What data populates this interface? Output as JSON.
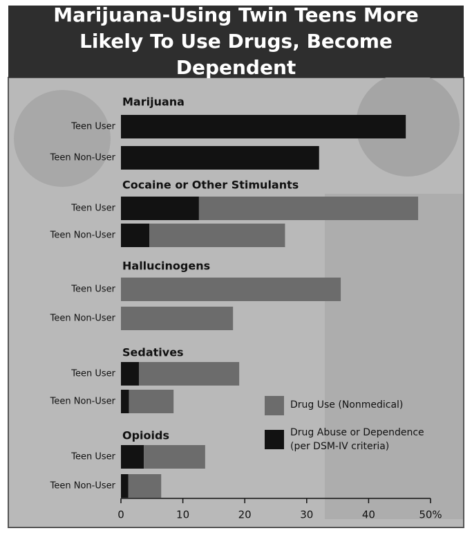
{
  "chart_data": {
    "type": "stacked-bar-horizontal",
    "title": "Marijuana-Using Twin Teens More Likely To Use Drugs, Become Dependent",
    "groups": [
      "Marijuana",
      "Cocaine or Other Stimulants",
      "Hallucinogens",
      "Sedatives",
      "Opioids"
    ],
    "categories": [
      "Teen User",
      "Teen Non-User",
      "Teen User",
      "Teen Non-User",
      "Teen User",
      "Teen Non-User",
      "Teen User",
      "Teen Non-User",
      "Teen User",
      "Teen Non-User"
    ],
    "series": [
      {
        "name": "Drug Abuse or Dependence (per DSM-IV criteria)",
        "color": "#121212",
        "values": [
          46,
          32,
          12.6,
          4.6,
          0,
          0,
          2.9,
          1.3,
          3.7,
          1.2
        ]
      },
      {
        "name": "Drug Use (Nonmedical)",
        "color": "#6c6c6c",
        "values": [
          0,
          0,
          35.4,
          21.9,
          35.5,
          18.1,
          16.2,
          7.2,
          9.9,
          5.3
        ]
      }
    ],
    "xlim": [
      0,
      50
    ],
    "xticks": [
      0,
      10,
      20,
      30,
      40,
      {
        "value": 50,
        "label": "50%"
      }
    ]
  }
}
